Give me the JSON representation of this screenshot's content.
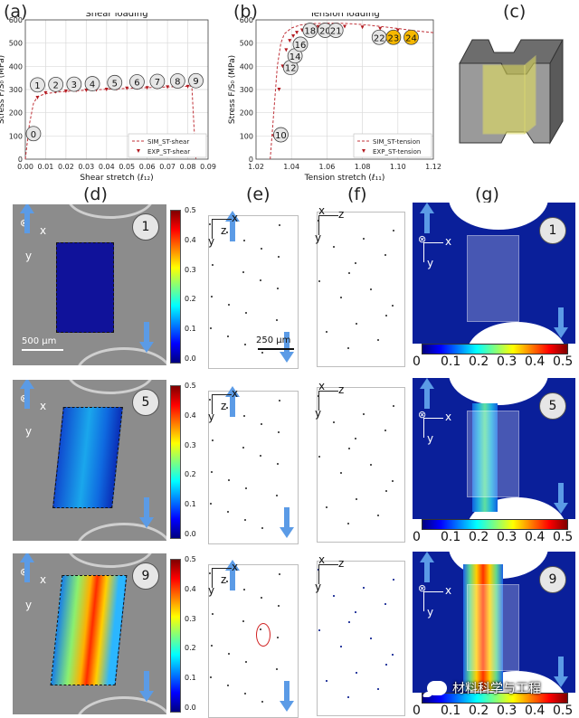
{
  "panels": {
    "a": "(a)",
    "b": "(b)",
    "c": "(c)",
    "d": "(d)",
    "e": "(e)",
    "f": "(f)",
    "g": "(g)"
  },
  "chart_data": [
    {
      "type": "line",
      "title": "Shear loading",
      "xlabel": "Shear stretch (ℓ₁₂)",
      "ylabel": "Stress F/S₀ (MPa)",
      "xlim": [
        0.0,
        0.09
      ],
      "ylim": [
        0,
        600
      ],
      "xticks": [
        "0.00",
        "0.01",
        "0.02",
        "0.03",
        "0.04",
        "0.05",
        "0.06",
        "0.07",
        "0.08",
        "0.09"
      ],
      "yticks": [
        "0",
        "100",
        "200",
        "300",
        "400",
        "500",
        "600"
      ],
      "grid": true,
      "legend_position": "bottom-right",
      "series": [
        {
          "name": "SIM_ST-shear",
          "x": [
            0.0,
            0.002,
            0.004,
            0.006,
            0.01,
            0.015,
            0.02,
            0.03,
            0.04,
            0.05,
            0.06,
            0.07,
            0.08,
            0.082,
            0.083,
            0.084
          ],
          "y": [
            0,
            150,
            240,
            270,
            282,
            288,
            292,
            297,
            301,
            305,
            308,
            311,
            314,
            315,
            150,
            0
          ]
        },
        {
          "name": "EXP_ST-shear",
          "x": [
            0.003,
            0.006,
            0.01,
            0.015,
            0.02,
            0.025,
            0.03,
            0.035,
            0.04,
            0.045,
            0.05,
            0.055,
            0.06,
            0.065,
            0.07,
            0.075,
            0.08
          ],
          "y": [
            115,
            265,
            285,
            290,
            292,
            295,
            296,
            298,
            300,
            302,
            305,
            306,
            307,
            308,
            310,
            311,
            312
          ]
        }
      ],
      "markers": [
        {
          "label": "0",
          "x": 0.004,
          "y": 110
        },
        {
          "label": "1",
          "x": 0.006,
          "y": 320
        },
        {
          "label": "2",
          "x": 0.015,
          "y": 322
        },
        {
          "label": "3",
          "x": 0.024,
          "y": 323
        },
        {
          "label": "4",
          "x": 0.033,
          "y": 325
        },
        {
          "label": "5",
          "x": 0.044,
          "y": 330
        },
        {
          "label": "6",
          "x": 0.055,
          "y": 333
        },
        {
          "label": "7",
          "x": 0.065,
          "y": 335
        },
        {
          "label": "8",
          "x": 0.075,
          "y": 337
        },
        {
          "label": "9",
          "x": 0.084,
          "y": 338
        }
      ]
    },
    {
      "type": "line",
      "title": "Tension loading",
      "xlabel": "Tension stretch (ℓ₁₁)",
      "ylabel": "Stress F/S₀ (MPa)",
      "xlim": [
        1.02,
        1.12
      ],
      "ylim": [
        0,
        600
      ],
      "xticks": [
        "1.02",
        "1.04",
        "1.06",
        "1.08",
        "1.10",
        "1.12"
      ],
      "yticks": [
        "0",
        "100",
        "200",
        "300",
        "400",
        "500",
        "600"
      ],
      "grid": true,
      "legend_position": "bottom-right",
      "series": [
        {
          "name": "SIM_ST-tension",
          "x": [
            1.028,
            1.03,
            1.032,
            1.034,
            1.036,
            1.04,
            1.045,
            1.05,
            1.06,
            1.07,
            1.08,
            1.09,
            1.1,
            1.11,
            1.12
          ],
          "y": [
            0,
            200,
            400,
            500,
            540,
            565,
            578,
            583,
            586,
            585,
            580,
            572,
            563,
            553,
            545
          ]
        },
        {
          "name": "EXP_ST-tension",
          "x": [
            1.03,
            1.033,
            1.035,
            1.037,
            1.039,
            1.041,
            1.043,
            1.046,
            1.05,
            1.055,
            1.06,
            1.07,
            1.08,
            1.09,
            1.1
          ],
          "y": [
            100,
            300,
            400,
            470,
            510,
            530,
            545,
            555,
            565,
            570,
            572,
            571,
            568,
            562,
            555
          ]
        }
      ],
      "markers": [
        {
          "label": "10",
          "x": 1.034,
          "y": 105,
          "highlight": false
        },
        {
          "label": "12",
          "x": 1.0395,
          "y": 395,
          "highlight": false
        },
        {
          "label": "14",
          "x": 1.042,
          "y": 445,
          "highlight": false
        },
        {
          "label": "16",
          "x": 1.045,
          "y": 495,
          "highlight": false
        },
        {
          "label": "18",
          "x": 1.0505,
          "y": 555,
          "highlight": false
        },
        {
          "label": "20",
          "x": 1.059,
          "y": 555,
          "highlight": false
        },
        {
          "label": "21",
          "x": 1.065,
          "y": 555,
          "highlight": false
        },
        {
          "label": "22",
          "x": 1.0895,
          "y": 525,
          "highlight": false
        },
        {
          "label": "23",
          "x": 1.0975,
          "y": 525,
          "highlight": true
        },
        {
          "label": "24",
          "x": 1.1075,
          "y": 525,
          "highlight": true
        }
      ]
    }
  ],
  "colors": {
    "sim_line": "#c0333a",
    "exp_marker": "#b31a20",
    "marker_fill": "#e6e6e6",
    "highlight_fill": "#f7b800",
    "arrow_blue": "#5b9be6"
  },
  "rows": [
    {
      "step": "1",
      "scale_d": "500 µm",
      "scale_e": "250 µm"
    },
    {
      "step": "5"
    },
    {
      "step": "9"
    }
  ],
  "colorbar_vertical": [
    "0.5",
    "0.4",
    "0.3",
    "0.2",
    "0.1",
    "0.0"
  ],
  "colorbar_horizontal": [
    "0",
    "0.1",
    "0.2",
    "0.3",
    "0.4",
    "0.5"
  ],
  "axes_labels": {
    "x": "x",
    "y": "y",
    "z": "z"
  },
  "watermark": "材料科学与工程"
}
